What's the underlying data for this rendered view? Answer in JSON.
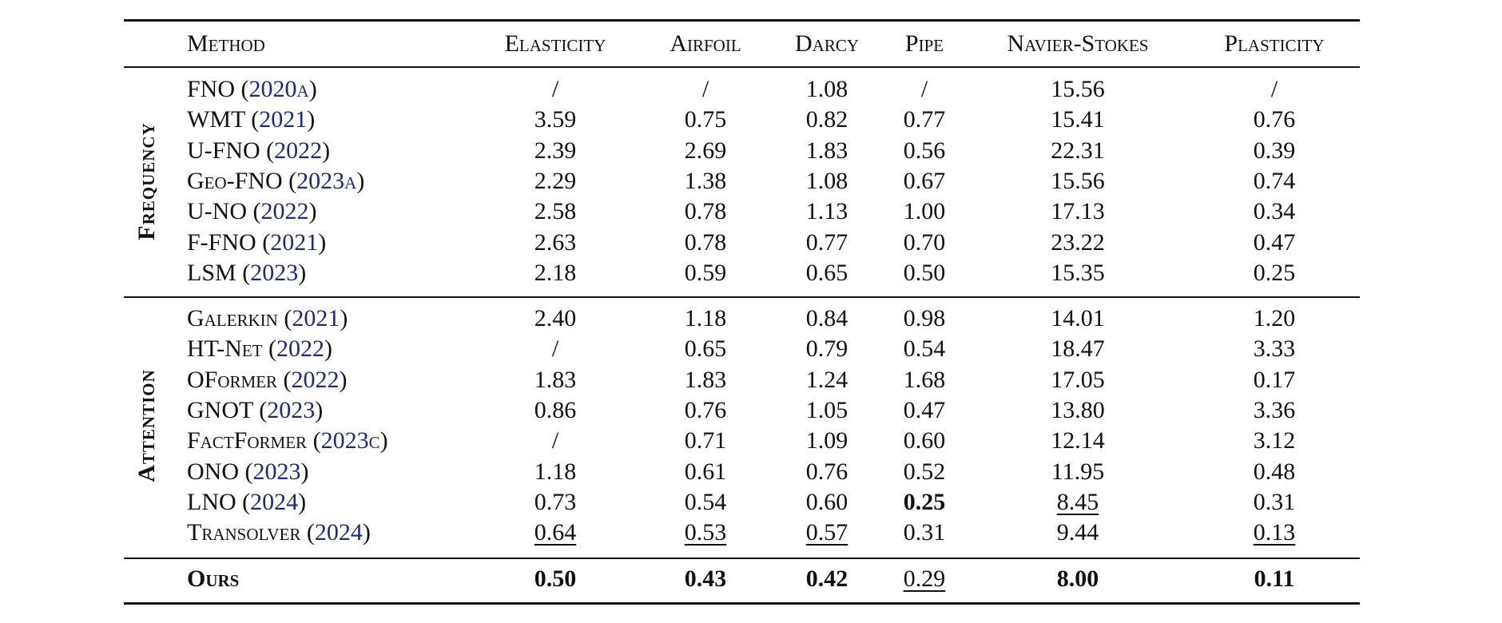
{
  "table": {
    "header": [
      "Method",
      "Elasticity",
      "Airfoil",
      "Darcy",
      "Pipe",
      "Navier-Stokes",
      "Plasticity"
    ],
    "groups": [
      {
        "label": "Frequency",
        "rows": [
          {
            "method": "FNO",
            "cite": [
              "(",
              "2020a",
              ")"
            ],
            "values": [
              "/",
              "/",
              "1.08",
              "/",
              "15.56",
              "/"
            ]
          },
          {
            "method": "WMT",
            "cite": [
              "(",
              "2021",
              ")"
            ],
            "values": [
              "3.59",
              "0.75",
              "0.82",
              "0.77",
              "15.41",
              "0.76"
            ]
          },
          {
            "method": "U-FNO",
            "cite": [
              "(",
              "2022",
              ")"
            ],
            "values": [
              "2.39",
              "2.69",
              "1.83",
              "0.56",
              "22.31",
              "0.39"
            ]
          },
          {
            "method": "Geo-FNO",
            "cite": [
              "(",
              "2023a",
              ")"
            ],
            "values": [
              "2.29",
              "1.38",
              "1.08",
              "0.67",
              "15.56",
              "0.74"
            ]
          },
          {
            "method": "U-NO",
            "cite": [
              "(",
              "2022",
              ")"
            ],
            "values": [
              "2.58",
              "0.78",
              "1.13",
              "1.00",
              "17.13",
              "0.34"
            ]
          },
          {
            "method": "F-FNO",
            "cite": [
              "(",
              "2021",
              ")"
            ],
            "values": [
              "2.63",
              "0.78",
              "0.77",
              "0.70",
              "23.22",
              "0.47"
            ]
          },
          {
            "method": "LSM",
            "cite": [
              "(",
              "2023",
              ")"
            ],
            "values": [
              "2.18",
              "0.59",
              "0.65",
              "0.50",
              "15.35",
              "0.25"
            ]
          }
        ]
      },
      {
        "label": "Attention",
        "rows": [
          {
            "method": "Galerkin",
            "cite": [
              "(",
              "2021",
              ")"
            ],
            "values": [
              "2.40",
              "1.18",
              "0.84",
              "0.98",
              "14.01",
              "1.20"
            ]
          },
          {
            "method": "HT-Net",
            "cite": [
              "(",
              "2022",
              ")"
            ],
            "values": [
              "/",
              "0.65",
              "0.79",
              "0.54",
              "18.47",
              "3.33"
            ]
          },
          {
            "method": "OFormer",
            "cite": [
              "(",
              "2022",
              ")"
            ],
            "values": [
              "1.83",
              "1.83",
              "1.24",
              "1.68",
              "17.05",
              "0.17"
            ]
          },
          {
            "method": "GNOT",
            "cite": [
              "(",
              "2023",
              ")"
            ],
            "values": [
              "0.86",
              "0.76",
              "1.05",
              "0.47",
              "13.80",
              "3.36"
            ]
          },
          {
            "method": "FactFormer",
            "cite": [
              "(",
              "2023c",
              ")"
            ],
            "values": [
              "/",
              "0.71",
              "1.09",
              "0.60",
              "12.14",
              "3.12"
            ]
          },
          {
            "method": "ONO",
            "cite": [
              "(",
              "2023",
              ")"
            ],
            "values": [
              "1.18",
              "0.61",
              "0.76",
              "0.52",
              "11.95",
              "0.48"
            ]
          },
          {
            "method": "LNO",
            "cite": [
              "(",
              "2024",
              ")"
            ],
            "values": [
              "0.73",
              "0.54",
              "0.60",
              "0.25",
              "8.45",
              "0.31"
            ],
            "bold": [
              3
            ],
            "underline": [
              4
            ]
          },
          {
            "method": "Transolver",
            "cite": [
              "(",
              "2024",
              ")"
            ],
            "values": [
              "0.64",
              "0.53",
              "0.57",
              "0.31",
              "9.44",
              "0.13"
            ],
            "underline": [
              0,
              1,
              2,
              5
            ]
          }
        ]
      }
    ],
    "ours": {
      "method": "Ours",
      "values": [
        "0.50",
        "0.43",
        "0.42",
        "0.29",
        "8.00",
        "0.11"
      ],
      "bold": [
        0,
        1,
        2,
        4,
        5
      ],
      "underline": [
        3
      ]
    }
  }
}
